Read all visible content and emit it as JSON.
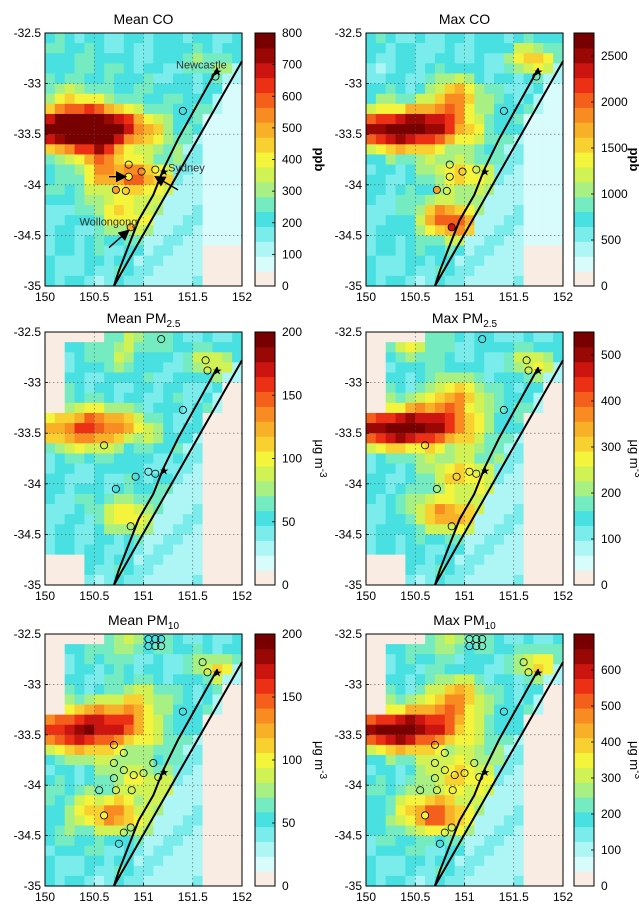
{
  "colormap": {
    "colors": [
      "#f9ece2",
      "#d8fbfb",
      "#aef5f5",
      "#7aecec",
      "#48e0e0",
      "#74ebc0",
      "#a8f084",
      "#d0f254",
      "#f4f43c",
      "#f8d030",
      "#f8b028",
      "#f88c22",
      "#f4601c",
      "#ec3016",
      "#cc1410",
      "#9a0806",
      "#780000"
    ]
  },
  "geo": {
    "lon_ticks": [
      "150",
      "150.5",
      "151",
      "151.5",
      "152"
    ],
    "lat_ticks": [
      "-32.5",
      "-33",
      "-33.5",
      "-34",
      "-34.5",
      "-35"
    ],
    "coastline": [
      [
        151.75,
        -32.85
      ],
      [
        151.55,
        -33.2
      ],
      [
        151.35,
        -33.55
      ],
      [
        151.2,
        -33.85
      ],
      [
        151.1,
        -34.1
      ],
      [
        150.95,
        -34.35
      ],
      [
        150.85,
        -34.6
      ],
      [
        150.75,
        -34.85
      ],
      [
        150.7,
        -35.0
      ]
    ],
    "stars": [
      [
        151.75,
        -32.88
      ],
      [
        151.21,
        -33.87
      ]
    ]
  },
  "chart_data": [
    {
      "type": "heatmap",
      "title": "Mean CO",
      "title_main": "Mean CO",
      "title_sub": "",
      "colorbar_label": "ppb",
      "colorbar_label_sup": "",
      "vmax": 800,
      "ticks": [
        "0",
        "100",
        "200",
        "300",
        "400",
        "500",
        "600",
        "700",
        "800"
      ],
      "hotspots": [
        [
          150.4,
          -33.45,
          0.65,
          0.22,
          1.0
        ],
        [
          150.85,
          -34.3,
          0.35,
          0.22,
          0.3
        ],
        [
          150.9,
          -33.92,
          0.5,
          0.18,
          0.45
        ],
        [
          150.55,
          -33.7,
          0.15,
          0.25,
          0.25
        ],
        [
          150.3,
          -33.1,
          0.4,
          0.4,
          0.12
        ],
        [
          151.7,
          -32.8,
          0.3,
          0.18,
          0.12
        ]
      ],
      "sites": [
        [
          150.85,
          -33.8
        ],
        [
          150.85,
          -33.92
        ],
        [
          150.98,
          -33.87
        ],
        [
          151.12,
          -33.85
        ],
        [
          150.72,
          -34.05
        ],
        [
          150.82,
          -34.06
        ],
        [
          150.87,
          -34.42
        ],
        [
          151.4,
          -33.27
        ],
        [
          151.73,
          -32.93
        ]
      ],
      "annotations": [
        {
          "text": "Newcastle",
          "lon": 151.33,
          "lat": -32.85
        },
        {
          "text": "Sydney",
          "lon": 151.25,
          "lat": -33.87
        },
        {
          "text": "Wollongong",
          "lon": 150.35,
          "lat": -34.4
        }
      ]
    },
    {
      "type": "heatmap",
      "title": "Max CO",
      "title_main": "Max CO",
      "title_sub": "",
      "colorbar_label": "ppb",
      "colorbar_label_sup": "",
      "vmax": 2750,
      "ticks": [
        "0",
        "500",
        "1000",
        "1500",
        "2000",
        "2500"
      ],
      "hotspots": [
        [
          150.4,
          -33.45,
          0.6,
          0.2,
          0.9
        ],
        [
          150.85,
          -34.35,
          0.3,
          0.2,
          0.55
        ],
        [
          150.9,
          -33.15,
          0.25,
          0.2,
          0.45
        ],
        [
          151.0,
          -33.9,
          0.4,
          0.18,
          0.3
        ],
        [
          151.7,
          -32.75,
          0.2,
          0.15,
          0.4
        ]
      ],
      "sites": [
        [
          150.85,
          -33.8
        ],
        [
          150.85,
          -33.92
        ],
        [
          150.98,
          -33.87
        ],
        [
          151.12,
          -33.85
        ],
        [
          150.72,
          -34.05
        ],
        [
          150.82,
          -34.06
        ],
        [
          150.87,
          -34.42
        ],
        [
          151.4,
          -33.27
        ],
        [
          151.73,
          -32.93
        ]
      ],
      "annotations": []
    },
    {
      "type": "heatmap",
      "title": "Mean PM2.5",
      "title_main": "Mean PM",
      "title_sub": "2.5",
      "colorbar_label": "μg m",
      "colorbar_label_sup": "-3",
      "vmax": 200,
      "ticks": [
        "0",
        "50",
        "100",
        "150",
        "200"
      ],
      "hotspots": [
        [
          150.45,
          -33.45,
          0.55,
          0.2,
          0.6
        ],
        [
          150.85,
          -34.3,
          0.3,
          0.2,
          0.3
        ],
        [
          150.8,
          -32.65,
          0.3,
          0.2,
          0.2
        ],
        [
          151.7,
          -32.8,
          0.2,
          0.15,
          0.25
        ]
      ],
      "sites": [
        [
          150.6,
          -33.62
        ],
        [
          150.72,
          -34.05
        ],
        [
          150.92,
          -33.93
        ],
        [
          151.05,
          -33.88
        ],
        [
          151.12,
          -33.9
        ],
        [
          150.87,
          -34.42
        ],
        [
          151.18,
          -32.57
        ],
        [
          151.4,
          -33.27
        ],
        [
          151.63,
          -32.78
        ],
        [
          151.65,
          -32.88
        ]
      ],
      "annotations": []
    },
    {
      "type": "heatmap",
      "title": "Max PM2.5",
      "title_main": "Max PM",
      "title_sub": "2.5",
      "colorbar_label": "μg m",
      "colorbar_label_sup": "-3",
      "vmax": 550,
      "ticks": [
        "0",
        "100",
        "200",
        "300",
        "400",
        "500"
      ],
      "hotspots": [
        [
          150.4,
          -33.45,
          0.65,
          0.2,
          0.85
        ],
        [
          150.85,
          -34.3,
          0.35,
          0.2,
          0.45
        ],
        [
          150.9,
          -33.15,
          0.3,
          0.2,
          0.4
        ],
        [
          151.0,
          -33.9,
          0.4,
          0.2,
          0.3
        ],
        [
          151.7,
          -32.8,
          0.2,
          0.15,
          0.3
        ],
        [
          150.5,
          -32.6,
          0.3,
          0.15,
          0.25
        ]
      ],
      "sites": [
        [
          150.6,
          -33.62
        ],
        [
          150.72,
          -34.05
        ],
        [
          150.92,
          -33.93
        ],
        [
          151.05,
          -33.88
        ],
        [
          151.12,
          -33.9
        ],
        [
          150.87,
          -34.42
        ],
        [
          151.18,
          -32.57
        ],
        [
          151.4,
          -33.27
        ],
        [
          151.63,
          -32.78
        ],
        [
          151.65,
          -32.88
        ]
      ],
      "annotations": []
    },
    {
      "type": "heatmap",
      "title": "Mean PM10",
      "title_main": "Mean PM",
      "title_sub": "10",
      "colorbar_label": "μg m",
      "colorbar_label_sup": "-3",
      "vmax": 200,
      "ticks": [
        "0",
        "50",
        "100",
        "150",
        "200"
      ],
      "hotspots": [
        [
          150.4,
          -33.45,
          0.6,
          0.22,
          0.75
        ],
        [
          150.65,
          -34.3,
          0.45,
          0.2,
          0.4
        ],
        [
          150.9,
          -33.2,
          0.3,
          0.2,
          0.3
        ],
        [
          150.75,
          -32.6,
          0.3,
          0.15,
          0.2
        ],
        [
          151.75,
          -32.85,
          0.2,
          0.15,
          0.3
        ],
        [
          151.0,
          -33.95,
          0.45,
          0.25,
          0.2
        ]
      ],
      "sites": [
        [
          151.05,
          -32.55
        ],
        [
          151.12,
          -32.55
        ],
        [
          151.18,
          -32.55
        ],
        [
          151.05,
          -32.62
        ],
        [
          151.12,
          -32.62
        ],
        [
          151.18,
          -32.62
        ],
        [
          151.6,
          -32.78
        ],
        [
          151.65,
          -32.88
        ],
        [
          150.7,
          -33.6
        ],
        [
          150.8,
          -33.68
        ],
        [
          150.7,
          -33.78
        ],
        [
          150.8,
          -33.85
        ],
        [
          150.7,
          -33.93
        ],
        [
          150.9,
          -33.9
        ],
        [
          151.0,
          -33.88
        ],
        [
          151.1,
          -33.78
        ],
        [
          151.15,
          -33.92
        ],
        [
          150.55,
          -34.05
        ],
        [
          150.72,
          -34.05
        ],
        [
          150.88,
          -34.05
        ],
        [
          150.6,
          -34.3
        ],
        [
          150.8,
          -34.47
        ],
        [
          150.75,
          -34.58
        ],
        [
          150.87,
          -34.42
        ],
        [
          151.4,
          -33.27
        ]
      ],
      "annotations": []
    },
    {
      "type": "heatmap",
      "title": "Max PM10",
      "title_main": "Max PM",
      "title_sub": "10",
      "colorbar_label": "μg m",
      "colorbar_label_sup": "-3",
      "vmax": 700,
      "ticks": [
        "0",
        "100",
        "200",
        "300",
        "400",
        "500",
        "600"
      ],
      "hotspots": [
        [
          150.35,
          -33.45,
          0.6,
          0.2,
          0.85
        ],
        [
          150.7,
          -34.3,
          0.4,
          0.2,
          0.5
        ],
        [
          150.9,
          -33.15,
          0.3,
          0.2,
          0.45
        ],
        [
          151.0,
          -33.9,
          0.45,
          0.25,
          0.3
        ],
        [
          151.75,
          -32.8,
          0.2,
          0.15,
          0.35
        ],
        [
          150.8,
          -32.6,
          0.3,
          0.15,
          0.2
        ]
      ],
      "sites": [
        [
          151.05,
          -32.55
        ],
        [
          151.12,
          -32.55
        ],
        [
          151.18,
          -32.55
        ],
        [
          151.05,
          -32.62
        ],
        [
          151.12,
          -32.62
        ],
        [
          151.18,
          -32.62
        ],
        [
          151.6,
          -32.78
        ],
        [
          151.65,
          -32.88
        ],
        [
          150.7,
          -33.6
        ],
        [
          150.8,
          -33.68
        ],
        [
          150.7,
          -33.78
        ],
        [
          150.8,
          -33.85
        ],
        [
          150.7,
          -33.93
        ],
        [
          150.9,
          -33.9
        ],
        [
          151.0,
          -33.88
        ],
        [
          151.1,
          -33.78
        ],
        [
          151.15,
          -33.92
        ],
        [
          150.55,
          -34.05
        ],
        [
          150.72,
          -34.05
        ],
        [
          150.88,
          -34.05
        ],
        [
          150.6,
          -34.3
        ],
        [
          150.8,
          -34.47
        ],
        [
          150.75,
          -34.58
        ],
        [
          150.87,
          -34.42
        ],
        [
          151.4,
          -33.27
        ]
      ],
      "annotations": []
    }
  ]
}
